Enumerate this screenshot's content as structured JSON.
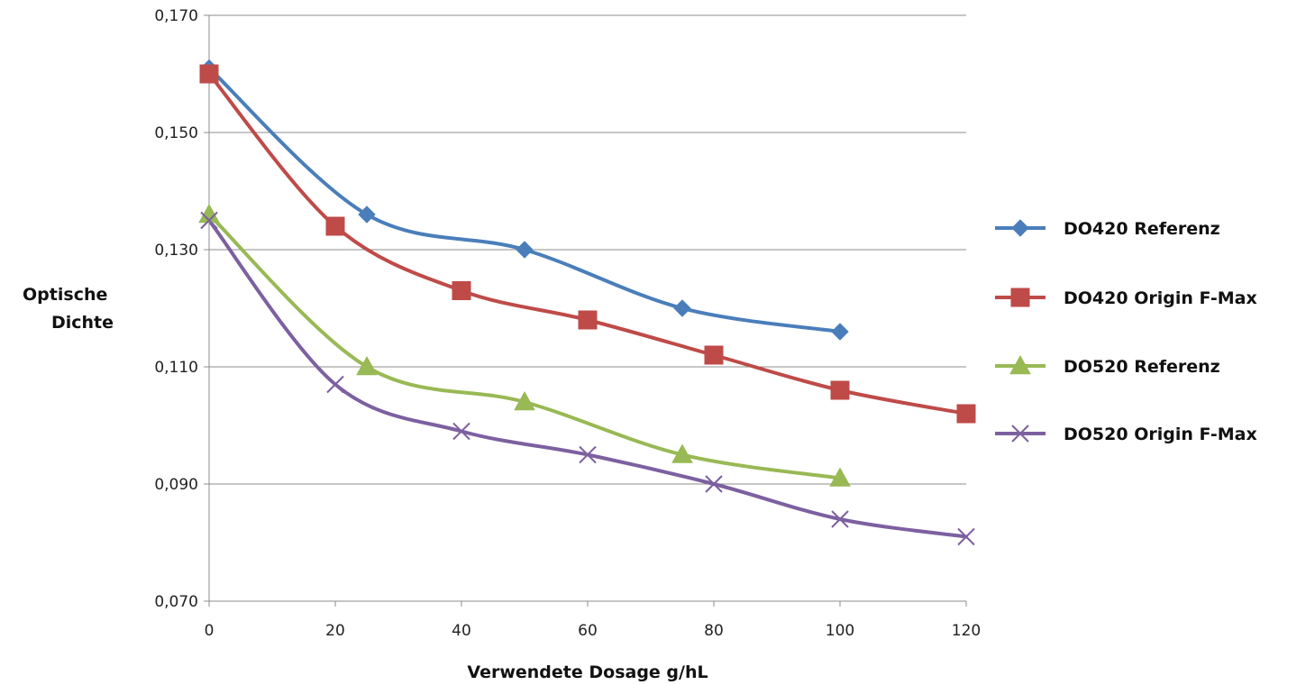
{
  "chart_data": {
    "type": "line",
    "title": "",
    "xlabel": "Verwendete Dosage g/hL",
    "ylabel": [
      "Optische",
      "Dichte"
    ],
    "xlim": [
      0,
      120
    ],
    "ylim": [
      0.07,
      0.17
    ],
    "x_ticks": [
      0,
      20,
      40,
      60,
      80,
      100,
      120
    ],
    "x_tick_labels": [
      "0",
      "20",
      "40",
      "60",
      "80",
      "100",
      "120"
    ],
    "y_ticks": [
      0.07,
      0.09,
      0.11,
      0.13,
      0.15,
      0.17
    ],
    "y_tick_labels": [
      "0,070",
      "0,090",
      "0,110",
      "0,130",
      "0,150",
      "0,170"
    ],
    "grid": "horizontal",
    "legend_position": "right",
    "smooth": true,
    "series": [
      {
        "name": "DO420 Referenz",
        "color": "#4A7EBB",
        "marker": "diamond",
        "points": [
          [
            0,
            0.161
          ],
          [
            25,
            0.136
          ],
          [
            50,
            0.13
          ],
          [
            75,
            0.12
          ],
          [
            100,
            0.116
          ]
        ]
      },
      {
        "name": "DO420 Origin F-Max",
        "color": "#BE4B48",
        "marker": "square",
        "points": [
          [
            0,
            0.16
          ],
          [
            20,
            0.134
          ],
          [
            40,
            0.123
          ],
          [
            60,
            0.118
          ],
          [
            80,
            0.112
          ],
          [
            100,
            0.106
          ],
          [
            120,
            0.102
          ]
        ]
      },
      {
        "name": "DO520 Referenz",
        "color": "#98B954",
        "marker": "triangle",
        "points": [
          [
            0,
            0.136
          ],
          [
            25,
            0.11
          ],
          [
            50,
            0.104
          ],
          [
            75,
            0.095
          ],
          [
            100,
            0.091
          ]
        ]
      },
      {
        "name": "DO520 Origin F-Max",
        "color": "#7D60A0",
        "marker": "x",
        "points": [
          [
            0,
            0.135
          ],
          [
            20,
            0.107
          ],
          [
            40,
            0.099
          ],
          [
            60,
            0.095
          ],
          [
            80,
            0.09
          ],
          [
            100,
            0.084
          ],
          [
            120,
            0.081
          ]
        ]
      }
    ]
  }
}
